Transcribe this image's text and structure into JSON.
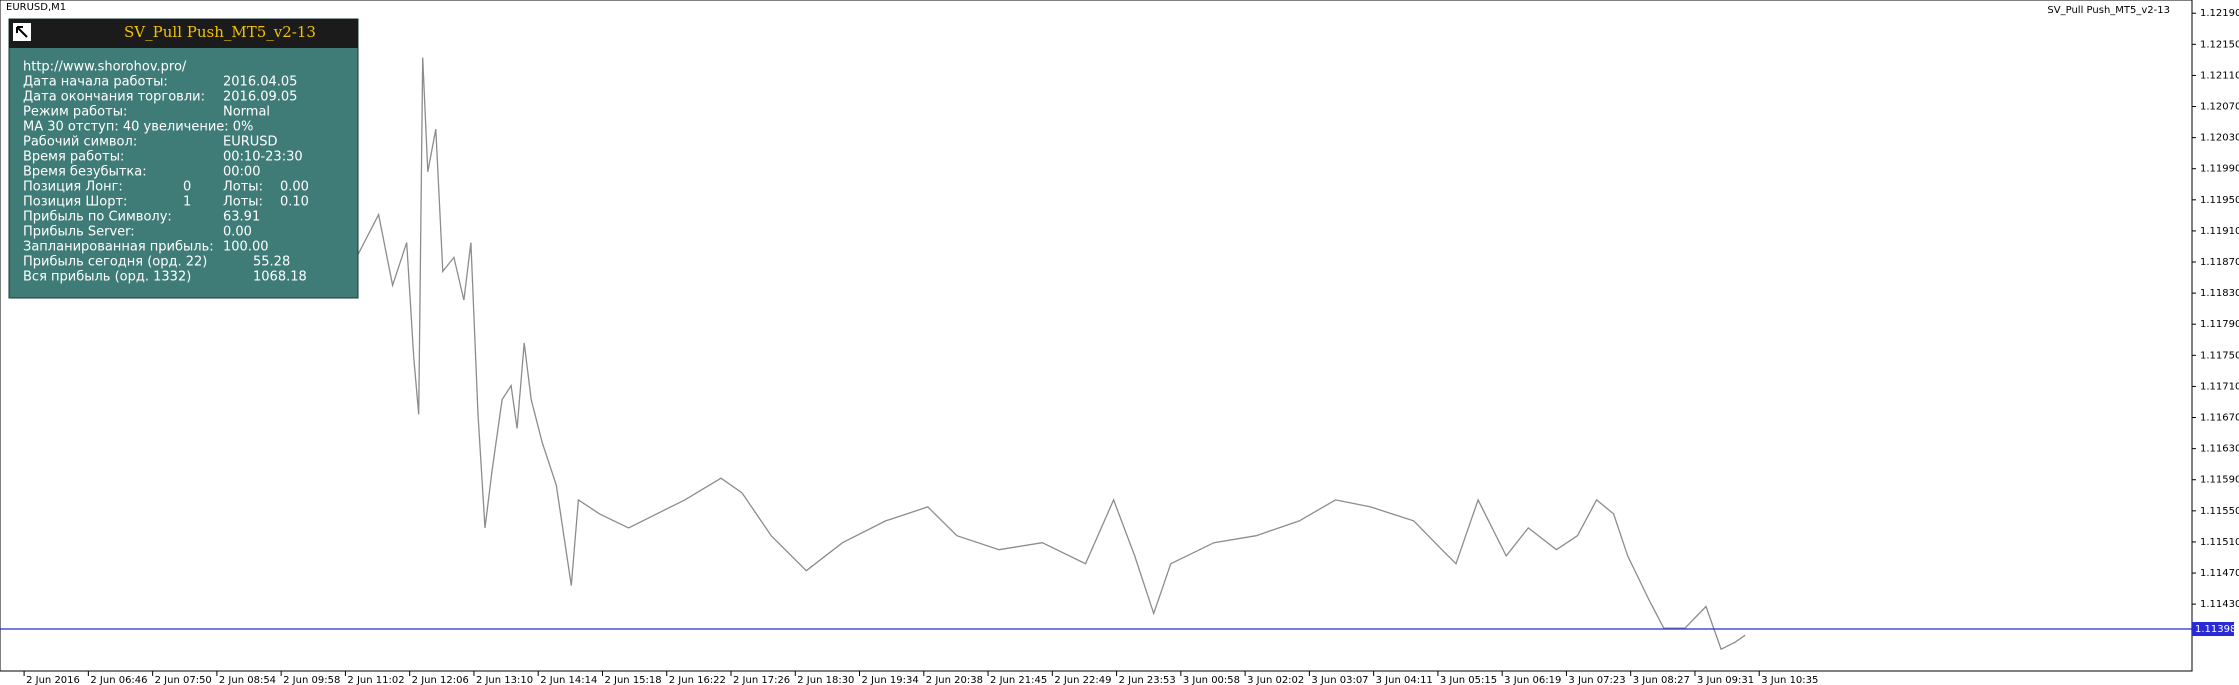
{
  "chart_data": {
    "type": "line",
    "symbol_label": "EURUSD,M1",
    "indicator_name": "SV_Pull Push_MT5_v2-13",
    "x": [
      331,
      353,
      367,
      381,
      388,
      393,
      397,
      402,
      410,
      417,
      428,
      438,
      445,
      452,
      459,
      466,
      476,
      485,
      491,
      498,
      505,
      516,
      530,
      545,
      552,
      573,
      602,
      630,
      658,
      694,
      715,
      744,
      779,
      815,
      858,
      900,
      929,
      971,
      1014,
      1057,
      1085,
      1106,
      1125,
      1142,
      1185,
      1227,
      1270,
      1306,
      1341,
      1384,
      1412,
      1426,
      1448,
      1476,
      1498,
      1526,
      1547,
      1566,
      1583,
      1597,
      1618,
      1633,
      1654,
      1675,
      1690,
      1704,
      1714
    ],
    "series": [
      {
        "name": "EURUSD",
        "color": "#8c8c8c",
        "values": [
          1.11876,
          1.11931,
          1.1184,
          1.11895,
          1.11748,
          1.11674,
          1.12133,
          1.11986,
          1.12041,
          1.11858,
          1.11876,
          1.11821,
          1.11895,
          1.11674,
          1.11528,
          1.11601,
          1.11693,
          1.11711,
          1.11656,
          1.11766,
          1.11693,
          1.11638,
          1.11583,
          1.11454,
          1.11564,
          1.11546,
          1.11528,
          1.11546,
          1.11564,
          1.11592,
          1.11573,
          1.11518,
          1.11473,
          1.11509,
          1.11537,
          1.11555,
          1.11518,
          1.115,
          1.11509,
          1.11482,
          1.11564,
          1.11492,
          1.11418,
          1.11482,
          1.11509,
          1.11518,
          1.11537,
          1.11564,
          1.11555,
          1.11537,
          1.115,
          1.11482,
          1.11564,
          1.11492,
          1.11528,
          1.115,
          1.11518,
          1.11564,
          1.11546,
          1.11492,
          1.11436,
          1.11399,
          1.11399,
          1.11427,
          1.11372,
          1.11381,
          1.1139
        ]
      }
    ],
    "current_price": 1.11398,
    "current_price_color": "#2b2bd6",
    "xlim": [
      -24,
      2159
    ],
    "xticks": [
      {
        "value": 0,
        "label": "2 Jun 2016"
      },
      {
        "value": 64,
        "label": "2 Jun 06:46"
      },
      {
        "value": 128,
        "label": "2 Jun 07:50"
      },
      {
        "value": 192,
        "label": "2 Jun 08:54"
      },
      {
        "value": 256,
        "label": "2 Jun 09:58"
      },
      {
        "value": 320,
        "label": "2 Jun 11:02"
      },
      {
        "value": 384,
        "label": "2 Jun 12:06"
      },
      {
        "value": 448,
        "label": "2 Jun 13:10"
      },
      {
        "value": 512,
        "label": "2 Jun 14:14"
      },
      {
        "value": 576,
        "label": "2 Jun 15:18"
      },
      {
        "value": 640,
        "label": "2 Jun 16:22"
      },
      {
        "value": 704,
        "label": "2 Jun 17:26"
      },
      {
        "value": 768,
        "label": "2 Jun 18:30"
      },
      {
        "value": 832,
        "label": "2 Jun 19:34"
      },
      {
        "value": 896,
        "label": "2 Jun 20:38"
      },
      {
        "value": 960,
        "label": "2 Jun 21:45"
      },
      {
        "value": 1024,
        "label": "2 Jun 22:49"
      },
      {
        "value": 1088,
        "label": "2 Jun 23:53"
      },
      {
        "value": 1152,
        "label": "3 Jun 00:58"
      },
      {
        "value": 1216,
        "label": "3 Jun 02:02"
      },
      {
        "value": 1280,
        "label": "3 Jun 03:07"
      },
      {
        "value": 1344,
        "label": "3 Jun 04:11"
      },
      {
        "value": 1408,
        "label": "3 Jun 05:15"
      },
      {
        "value": 1472,
        "label": "3 Jun 06:19"
      },
      {
        "value": 1536,
        "label": "3 Jun 07:23"
      },
      {
        "value": 1600,
        "label": "3 Jun 08:27"
      },
      {
        "value": 1664,
        "label": "3 Jun 09:31"
      },
      {
        "value": 1728,
        "label": "3 Jun 10:35"
      }
    ],
    "ylim": [
      1.11344,
      1.12207
    ],
    "yticks": [
      {
        "value": 1.1219,
        "label": "1.12190"
      },
      {
        "value": 1.1215,
        "label": "1.12150"
      },
      {
        "value": 1.1211,
        "label": "1.12110"
      },
      {
        "value": 1.1207,
        "label": "1.12070"
      },
      {
        "value": 1.1203,
        "label": "1.12030"
      },
      {
        "value": 1.1199,
        "label": "1.11990"
      },
      {
        "value": 1.1195,
        "label": "1.11950"
      },
      {
        "value": 1.1191,
        "label": "1.11910"
      },
      {
        "value": 1.1187,
        "label": "1.11870"
      },
      {
        "value": 1.1183,
        "label": "1.11830"
      },
      {
        "value": 1.1179,
        "label": "1.11790"
      },
      {
        "value": 1.1175,
        "label": "1.11750"
      },
      {
        "value": 1.1171,
        "label": "1.11710"
      },
      {
        "value": 1.1167,
        "label": "1.11670"
      },
      {
        "value": 1.1163,
        "label": "1.11630"
      },
      {
        "value": 1.1159,
        "label": "1.11590"
      },
      {
        "value": 1.1155,
        "label": "1.11550"
      },
      {
        "value": 1.1151,
        "label": "1.11510"
      },
      {
        "value": 1.1147,
        "label": "1.11470"
      },
      {
        "value": 1.1143,
        "label": "1.11430"
      }
    ],
    "grid": false
  },
  "panel": {
    "title": "SV_Pull Push_MT5_v2-13",
    "rows": [
      [
        "http://www.shorohov.pro/"
      ],
      [
        "Дата начала работы:",
        "2016.04.05"
      ],
      [
        "Дата окончания торговли:",
        "2016.09.05"
      ],
      [
        "Режим работы:",
        "Normal"
      ],
      [
        "MA 30 отступ: 40 увеличение: 0%"
      ],
      [
        "Рабочий символ:",
        "EURUSD"
      ],
      [
        "Время работы:",
        "00:10-23:30"
      ],
      [
        "Время безубытка:",
        "00:00"
      ],
      [
        "Позиция Лонг:",
        "0",
        "Лоты:",
        "0.00"
      ],
      [
        "Позиция Шорт:",
        "1",
        "Лоты:",
        "0.10"
      ],
      [
        "Прибыль по Символу:",
        "63.91"
      ],
      [
        "Прибыль Server:",
        "0.00"
      ],
      [
        "Запланированная прибыль:",
        "100.00"
      ],
      [
        "Прибыль сегодня (орд. 22)",
        "55.28"
      ],
      [
        "Вся прибыль (орд. 1332)",
        "1068.18"
      ]
    ]
  }
}
